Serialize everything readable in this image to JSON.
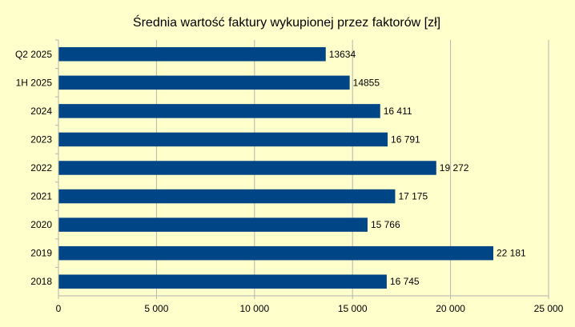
{
  "chart_data": {
    "type": "bar",
    "orientation": "horizontal",
    "title": "Średnia wartość faktury wykupionej przez faktorów [zł]",
    "categories": [
      "Q2 2025",
      "1H 2025",
      "2024",
      "2023",
      "2022",
      "2021",
      "2020",
      "2019",
      "2018"
    ],
    "values": [
      13634,
      14855,
      16411,
      16791,
      19272,
      17175,
      15766,
      22181,
      16745
    ],
    "value_labels": [
      "13634",
      "14855",
      "16 411",
      "16 791",
      "19 272",
      "17 175",
      "15 766",
      "22 181",
      "16 745"
    ],
    "xlim": [
      0,
      25000
    ],
    "x_ticks": [
      0,
      5000,
      10000,
      15000,
      20000,
      25000
    ],
    "x_tick_labels": [
      "0",
      "5 000",
      "10 000",
      "15 000",
      "20 000",
      "25 000"
    ],
    "grid": "vertical",
    "legend": "none",
    "bar_color": "#004586",
    "background_color": "#ffffcc",
    "grid_color": "#b3b3b3"
  }
}
